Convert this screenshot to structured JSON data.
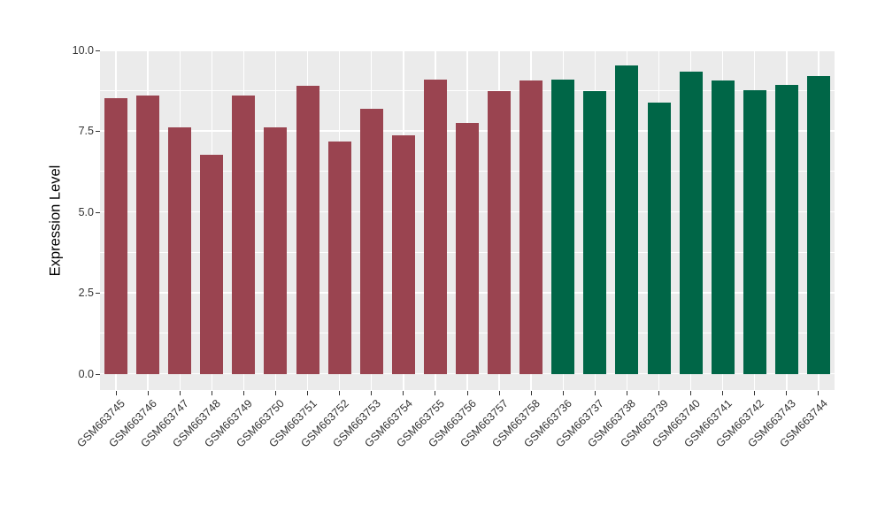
{
  "chart_data": {
    "type": "bar",
    "title": "",
    "xlabel": "",
    "ylabel": "Expression Level",
    "ylim": [
      0,
      10
    ],
    "yticks": [
      0,
      2.5,
      5,
      7.5,
      10
    ],
    "ytick_labels": [
      "0.0",
      "2.5",
      "5.0",
      "7.5",
      "10.0"
    ],
    "minor_yticks": [
      1.25,
      3.75,
      6.25,
      8.75
    ],
    "grid": "major and minor white gridlines on gray panel",
    "legend_position": "none",
    "panel_bg": "#EBEBEB",
    "gridline_color": "#FFFFFF",
    "tick_color": "#333333",
    "categories": [
      "GSM663745",
      "GSM663746",
      "GSM663747",
      "GSM663748",
      "GSM663749",
      "GSM663750",
      "GSM663751",
      "GSM663752",
      "GSM663753",
      "GSM663754",
      "GSM663755",
      "GSM663756",
      "GSM663757",
      "GSM663758",
      "GSM663736",
      "GSM663737",
      "GSM663738",
      "GSM663739",
      "GSM663740",
      "GSM663741",
      "GSM663742",
      "GSM663743",
      "GSM663744"
    ],
    "values": [
      8.53,
      8.61,
      7.61,
      6.78,
      8.61,
      7.62,
      8.91,
      7.19,
      8.19,
      7.37,
      9.11,
      7.75,
      8.73,
      9.07,
      9.1,
      8.75,
      9.53,
      8.39,
      9.34,
      9.08,
      8.76,
      8.93,
      9.2
    ],
    "groups": [
      "darkred",
      "darkred",
      "darkred",
      "darkred",
      "darkred",
      "darkred",
      "darkred",
      "darkred",
      "darkred",
      "darkred",
      "darkred",
      "darkred",
      "darkred",
      "darkred",
      "darkgreen",
      "darkgreen",
      "darkgreen",
      "darkgreen",
      "darkgreen",
      "darkgreen",
      "darkgreen",
      "darkgreen",
      "darkgreen"
    ],
    "group_colors": {
      "darkred": "#9A4450",
      "darkgreen": "#006647"
    }
  }
}
